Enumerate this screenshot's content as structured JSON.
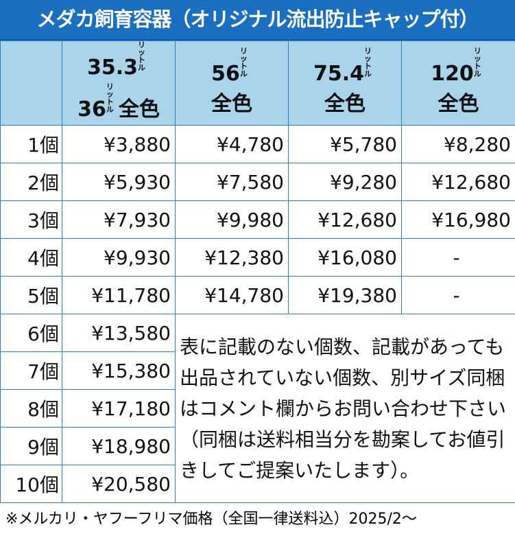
{
  "title": "メダカ飼育容器（オリジナル流出防止キャップ付）",
  "unit_small": "リッ トル",
  "columns": [
    {
      "size": "35.3",
      "size2": "36",
      "color": "全色"
    },
    {
      "size": "56",
      "color": "全色"
    },
    {
      "size": "75.4",
      "color": "全色"
    },
    {
      "size": "120",
      "color": "全色"
    }
  ],
  "rows": [
    {
      "qty": "1個",
      "prices": [
        "¥3,880",
        "¥4,780",
        "¥5,780",
        "¥8,280"
      ]
    },
    {
      "qty": "2個",
      "prices": [
        "¥5,930",
        "¥7,580",
        "¥9,280",
        "¥12,680"
      ]
    },
    {
      "qty": "3個",
      "prices": [
        "¥7,930",
        "¥9,980",
        "¥12,680",
        "¥16,980"
      ]
    },
    {
      "qty": "4個",
      "prices": [
        "¥9,930",
        "¥12,380",
        "¥16,080",
        "-"
      ]
    },
    {
      "qty": "5個",
      "prices": [
        "¥11,780",
        "¥14,780",
        "¥19,380",
        "-"
      ]
    },
    {
      "qty": "6個",
      "prices": [
        "¥13,580"
      ]
    },
    {
      "qty": "7個",
      "prices": [
        "¥15,380"
      ]
    },
    {
      "qty": "8個",
      "prices": [
        "¥17,180"
      ]
    },
    {
      "qty": "9個",
      "prices": [
        "¥18,980"
      ]
    },
    {
      "qty": "10個",
      "prices": [
        "¥20,580"
      ]
    }
  ],
  "note": "表に記載のない個数、記載があっても出品されていない個数、別サイズ同梱はコメント欄からお問い合わせ下さい（同梱は送料相当分を勘案してお値引きしてご提案いたします）。",
  "footer": "※メルカリ・ヤフーフリマ価格（全国一律送料込）2025/2～"
}
